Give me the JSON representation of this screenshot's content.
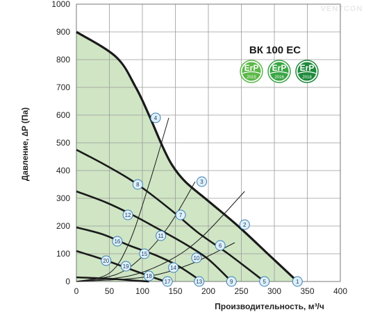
{
  "watermark": "VENTCON",
  "model": "ВК 100 ЕС",
  "badges": [
    {
      "top": "ErP",
      "year": "2015",
      "color": "#5cb848"
    },
    {
      "top": "ErP",
      "year": "2016",
      "color": "#3aa545"
    },
    {
      "top": "ErP",
      "year": "2018",
      "color": "#1f8a3c"
    }
  ],
  "chart_data": {
    "type": "line",
    "xlabel": "Производительность, м³/ч",
    "ylabel": "Давление, ∆P (Па)",
    "xlim": [
      0,
      400
    ],
    "ylim": [
      0,
      1000
    ],
    "xticks": [
      "0",
      "50",
      "100",
      "150",
      "200",
      "250",
      "300",
      "350",
      "400"
    ],
    "yticks": [
      "0",
      "100",
      "200",
      "300",
      "400",
      "500",
      "600",
      "700",
      "800",
      "900",
      "1000"
    ],
    "grid": true,
    "operating_area_color": "#cfe5c4",
    "curves": [
      [
        [
          0,
          900
        ],
        [
          60,
          810
        ],
        [
          90,
          700
        ],
        [
          110,
          600
        ],
        [
          130,
          490
        ],
        [
          145,
          420
        ],
        [
          165,
          360
        ],
        [
          200,
          290
        ],
        [
          245,
          200
        ],
        [
          290,
          100
        ],
        [
          335,
          0
        ]
      ],
      [
        [
          0,
          475
        ],
        [
          40,
          425
        ],
        [
          80,
          370
        ],
        [
          110,
          320
        ],
        [
          150,
          245
        ],
        [
          185,
          175
        ],
        [
          230,
          100
        ],
        [
          285,
          0
        ]
      ],
      [
        [
          0,
          325
        ],
        [
          45,
          285
        ],
        [
          85,
          240
        ],
        [
          120,
          195
        ],
        [
          165,
          135
        ],
        [
          200,
          80
        ],
        [
          235,
          0
        ]
      ],
      [
        [
          0,
          195
        ],
        [
          40,
          170
        ],
        [
          80,
          130
        ],
        [
          120,
          95
        ],
        [
          155,
          55
        ],
        [
          190,
          0
        ]
      ],
      [
        [
          0,
          110
        ],
        [
          40,
          80
        ],
        [
          75,
          50
        ],
        [
          110,
          20
        ],
        [
          135,
          0
        ]
      ],
      [
        [
          0,
          15
        ],
        [
          50,
          10
        ],
        [
          90,
          3
        ],
        [
          110,
          0
        ]
      ]
    ],
    "resistance_lines": [
      [
        [
          0,
          0
        ],
        [
          50,
          30
        ],
        [
          80,
          140
        ],
        [
          110,
          350
        ],
        [
          140,
          590
        ]
      ],
      [
        [
          0,
          0
        ],
        [
          60,
          25
        ],
        [
          100,
          90
        ],
        [
          140,
          200
        ],
        [
          180,
          360
        ]
      ],
      [
        [
          0,
          0
        ],
        [
          80,
          20
        ],
        [
          140,
          75
        ],
        [
          190,
          160
        ],
        [
          255,
          325
        ]
      ],
      [
        [
          0,
          0
        ],
        [
          100,
          15
        ],
        [
          170,
          60
        ],
        [
          240,
          140
        ]
      ]
    ],
    "points": [
      {
        "label": "1",
        "x": 335,
        "y": 0
      },
      {
        "label": "2",
        "x": 255,
        "y": 205
      },
      {
        "label": "3",
        "x": 190,
        "y": 360
      },
      {
        "label": "4",
        "x": 120,
        "y": 590
      },
      {
        "label": "5",
        "x": 285,
        "y": 0
      },
      {
        "label": "6",
        "x": 218,
        "y": 130
      },
      {
        "label": "7",
        "x": 158,
        "y": 240
      },
      {
        "label": "8",
        "x": 93,
        "y": 350
      },
      {
        "label": "9",
        "x": 235,
        "y": 0
      },
      {
        "label": "10",
        "x": 182,
        "y": 85
      },
      {
        "label": "11",
        "x": 128,
        "y": 165
      },
      {
        "label": "12",
        "x": 78,
        "y": 240
      },
      {
        "label": "13",
        "x": 186,
        "y": 0
      },
      {
        "label": "14",
        "x": 147,
        "y": 50
      },
      {
        "label": "15",
        "x": 103,
        "y": 100
      },
      {
        "label": "16",
        "x": 62,
        "y": 145
      },
      {
        "label": "17",
        "x": 138,
        "y": 0
      },
      {
        "label": "18",
        "x": 110,
        "y": 20
      },
      {
        "label": "19",
        "x": 75,
        "y": 55
      },
      {
        "label": "20",
        "x": 45,
        "y": 75
      }
    ]
  }
}
